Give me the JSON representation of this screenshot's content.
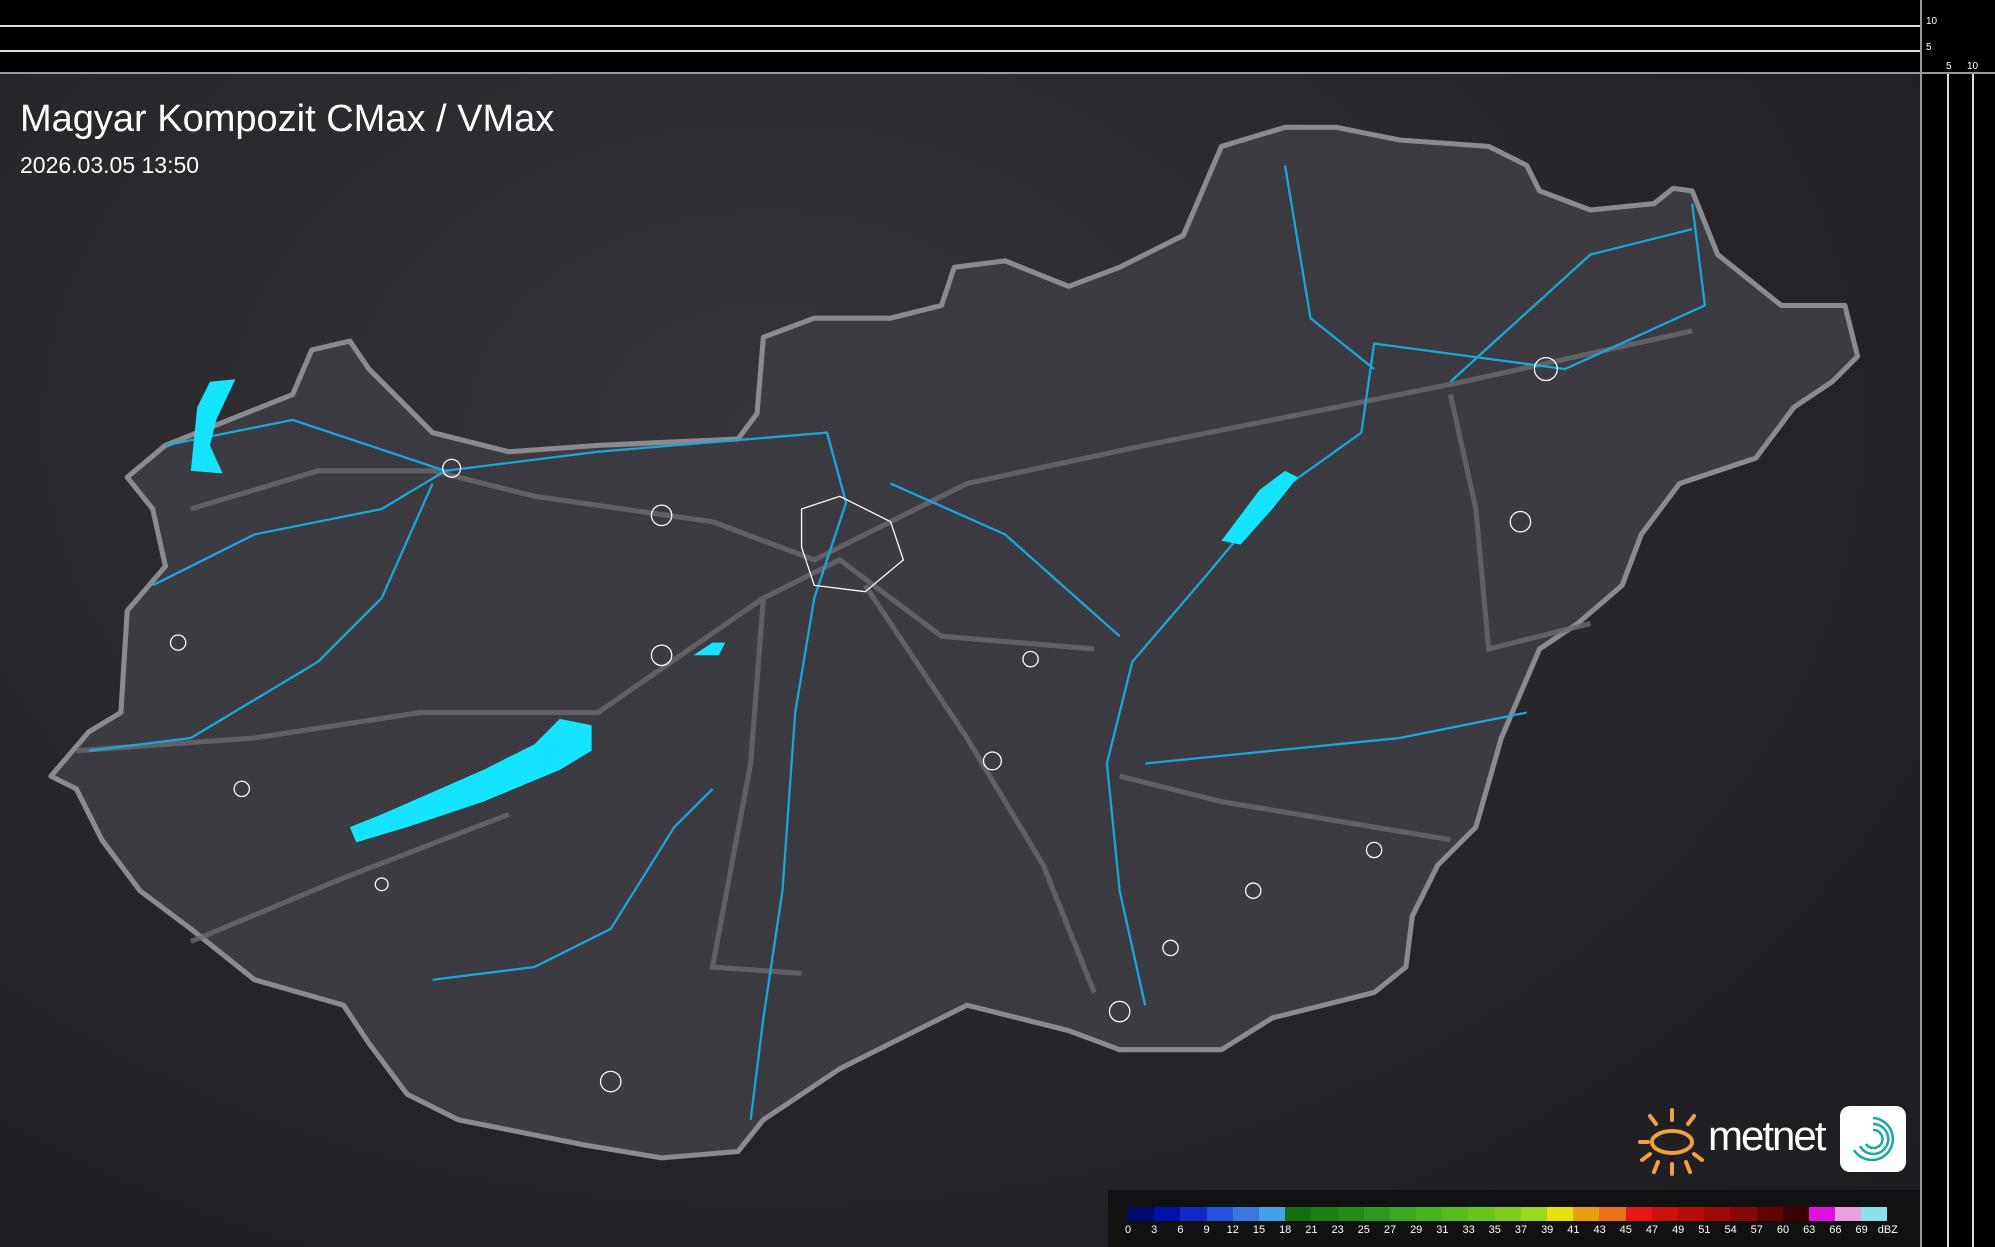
{
  "title": "Magyar Kompozit CMax / VMax",
  "timestamp": "2026.03.05 13:50",
  "scale_ticks": {
    "vertical": [
      "10",
      "5"
    ],
    "horizontal": [
      "5",
      "10"
    ]
  },
  "logo": {
    "text": "metnet"
  },
  "legend": {
    "unit": "dBZ",
    "labels": [
      "0",
      "3",
      "6",
      "9",
      "12",
      "15",
      "18",
      "21",
      "23",
      "25",
      "27",
      "29",
      "31",
      "33",
      "35",
      "37",
      "39",
      "41",
      "43",
      "45",
      "47",
      "49",
      "51",
      "54",
      "57",
      "60",
      "63",
      "66",
      "69"
    ],
    "colors": [
      "#000a6e",
      "#0010a8",
      "#1428c8",
      "#2a50e0",
      "#3a78e0",
      "#44a0e8",
      "#127012",
      "#1c7e14",
      "#238c18",
      "#2c9a1c",
      "#38a81e",
      "#48b41e",
      "#58bc1e",
      "#6ac41e",
      "#82cc20",
      "#9cd820",
      "#e8e010",
      "#e8a010",
      "#e87018",
      "#e81818",
      "#d01010",
      "#b80c0c",
      "#a00808",
      "#880808",
      "#600404",
      "#3a0202",
      "#e010e0",
      "#e8a0e0",
      "#88e0e8"
    ]
  },
  "colors": {
    "water": "#14e4ff",
    "river": "#1aa8d8",
    "border": "#8a8a90",
    "land": "#3b3b41"
  }
}
